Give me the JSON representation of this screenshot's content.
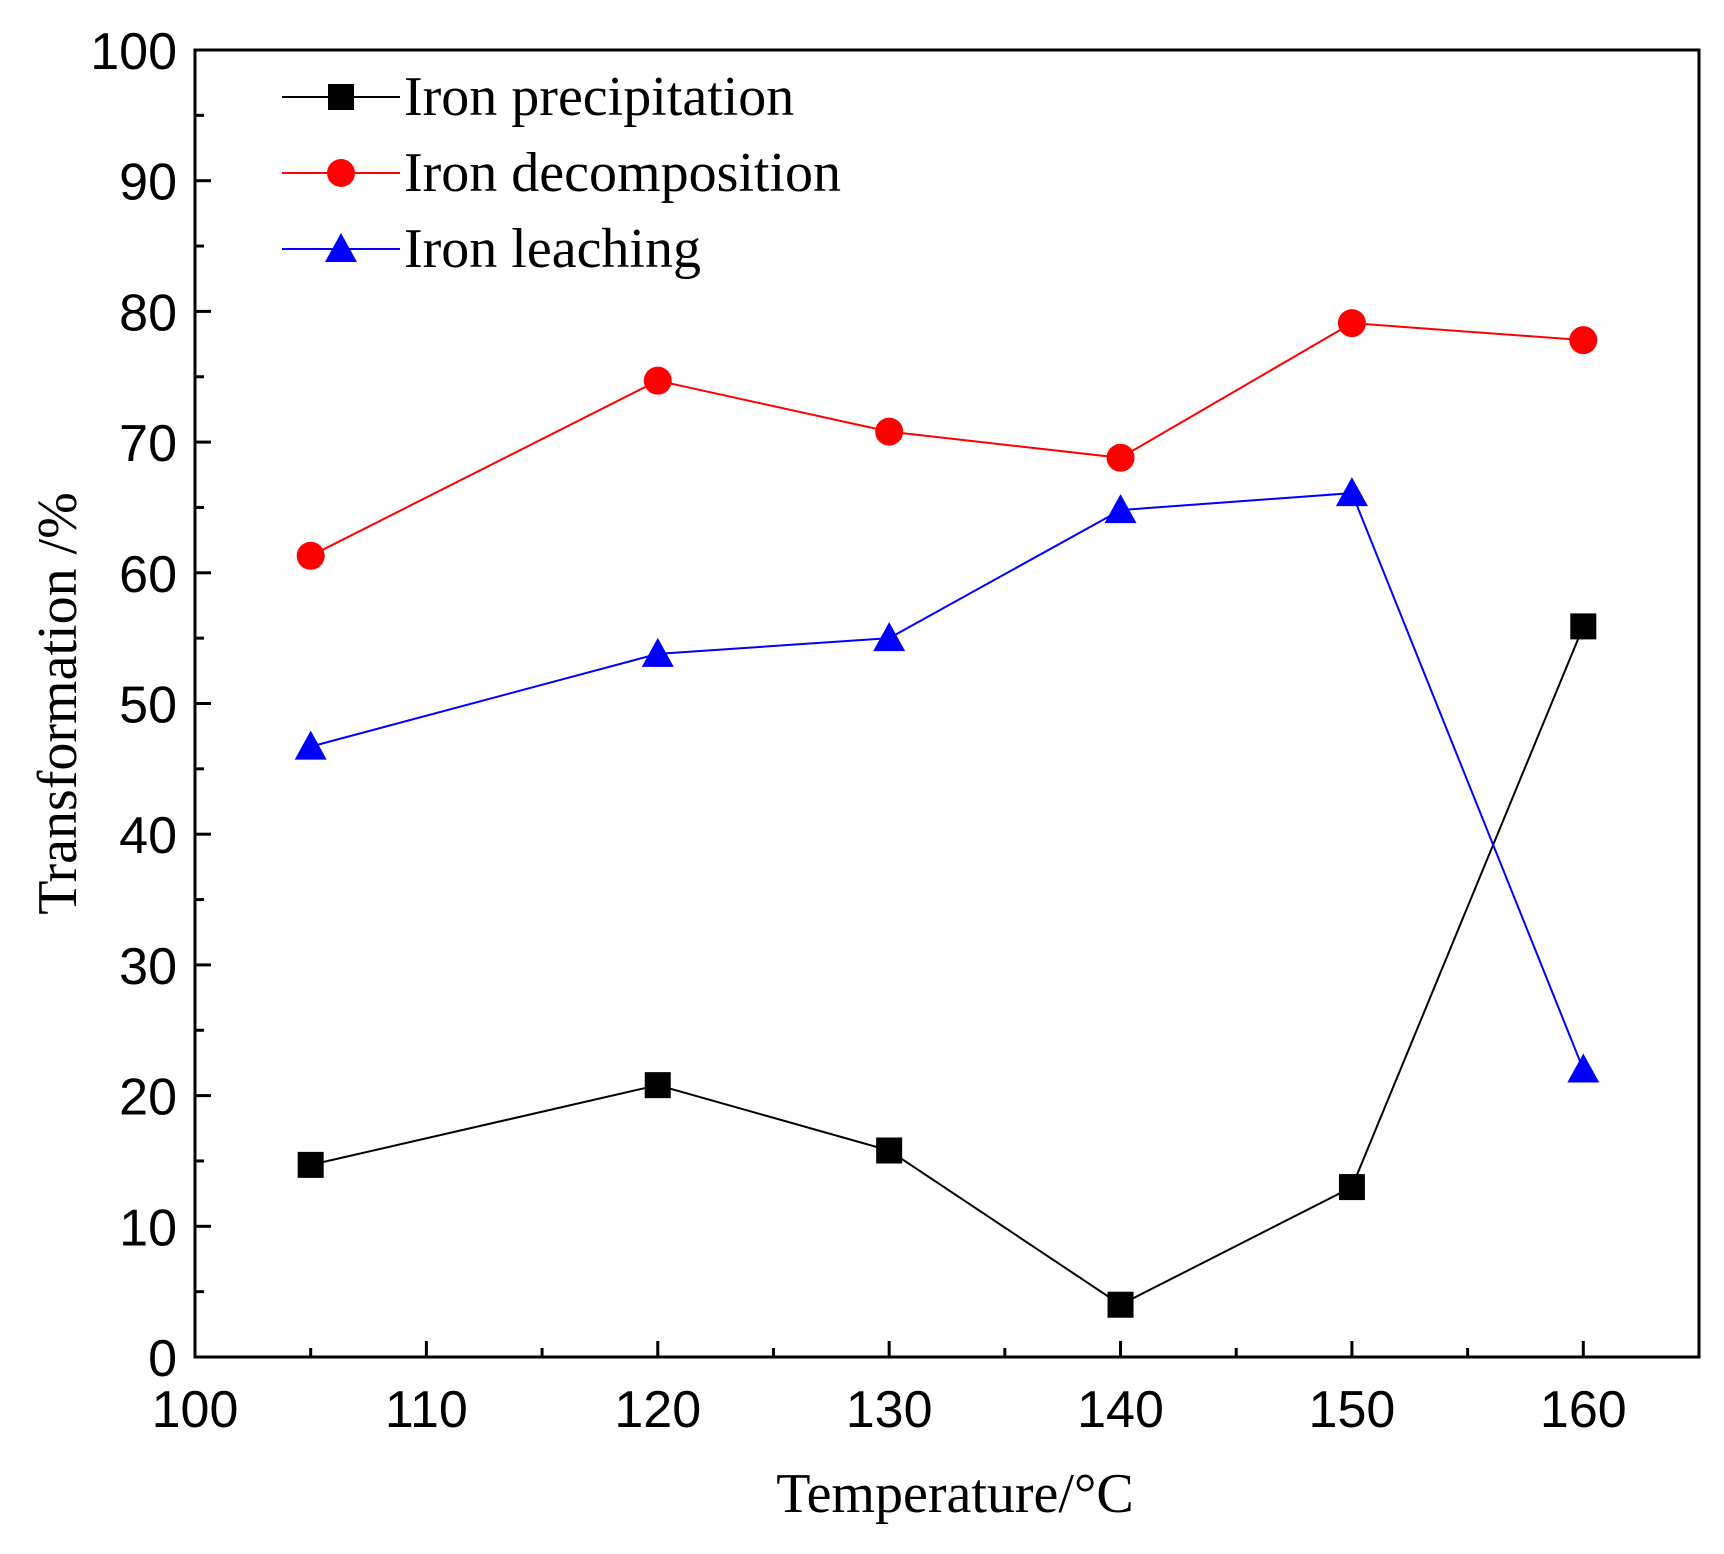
{
  "chart_data": {
    "type": "line",
    "xlabel": "Temperature/°C",
    "ylabel": "Transformation /%",
    "xlim": [
      100,
      165
    ],
    "ylim": [
      0,
      100
    ],
    "x_ticks": [
      100,
      110,
      120,
      130,
      140,
      150,
      160
    ],
    "y_ticks": [
      0,
      10,
      20,
      30,
      40,
      50,
      60,
      70,
      80,
      90,
      100
    ],
    "x_minor_step": 5,
    "y_minor_step": 5,
    "grid": false,
    "legend_position": "top-left",
    "x": [
      105,
      120,
      130,
      140,
      150,
      160
    ],
    "series": [
      {
        "name": "Iron precipitation",
        "color": "#000000",
        "marker": "square",
        "values": [
          14.7,
          20.8,
          15.8,
          4.0,
          13.0,
          55.9
        ]
      },
      {
        "name": "Iron decomposition",
        "color": "#ff0000",
        "marker": "circle",
        "values": [
          61.3,
          74.7,
          70.8,
          68.8,
          79.1,
          77.8
        ]
      },
      {
        "name": "Iron leaching",
        "color": "#0000ff",
        "marker": "triangle",
        "values": [
          46.7,
          53.8,
          55.0,
          64.8,
          66.1,
          22.0
        ]
      }
    ]
  }
}
